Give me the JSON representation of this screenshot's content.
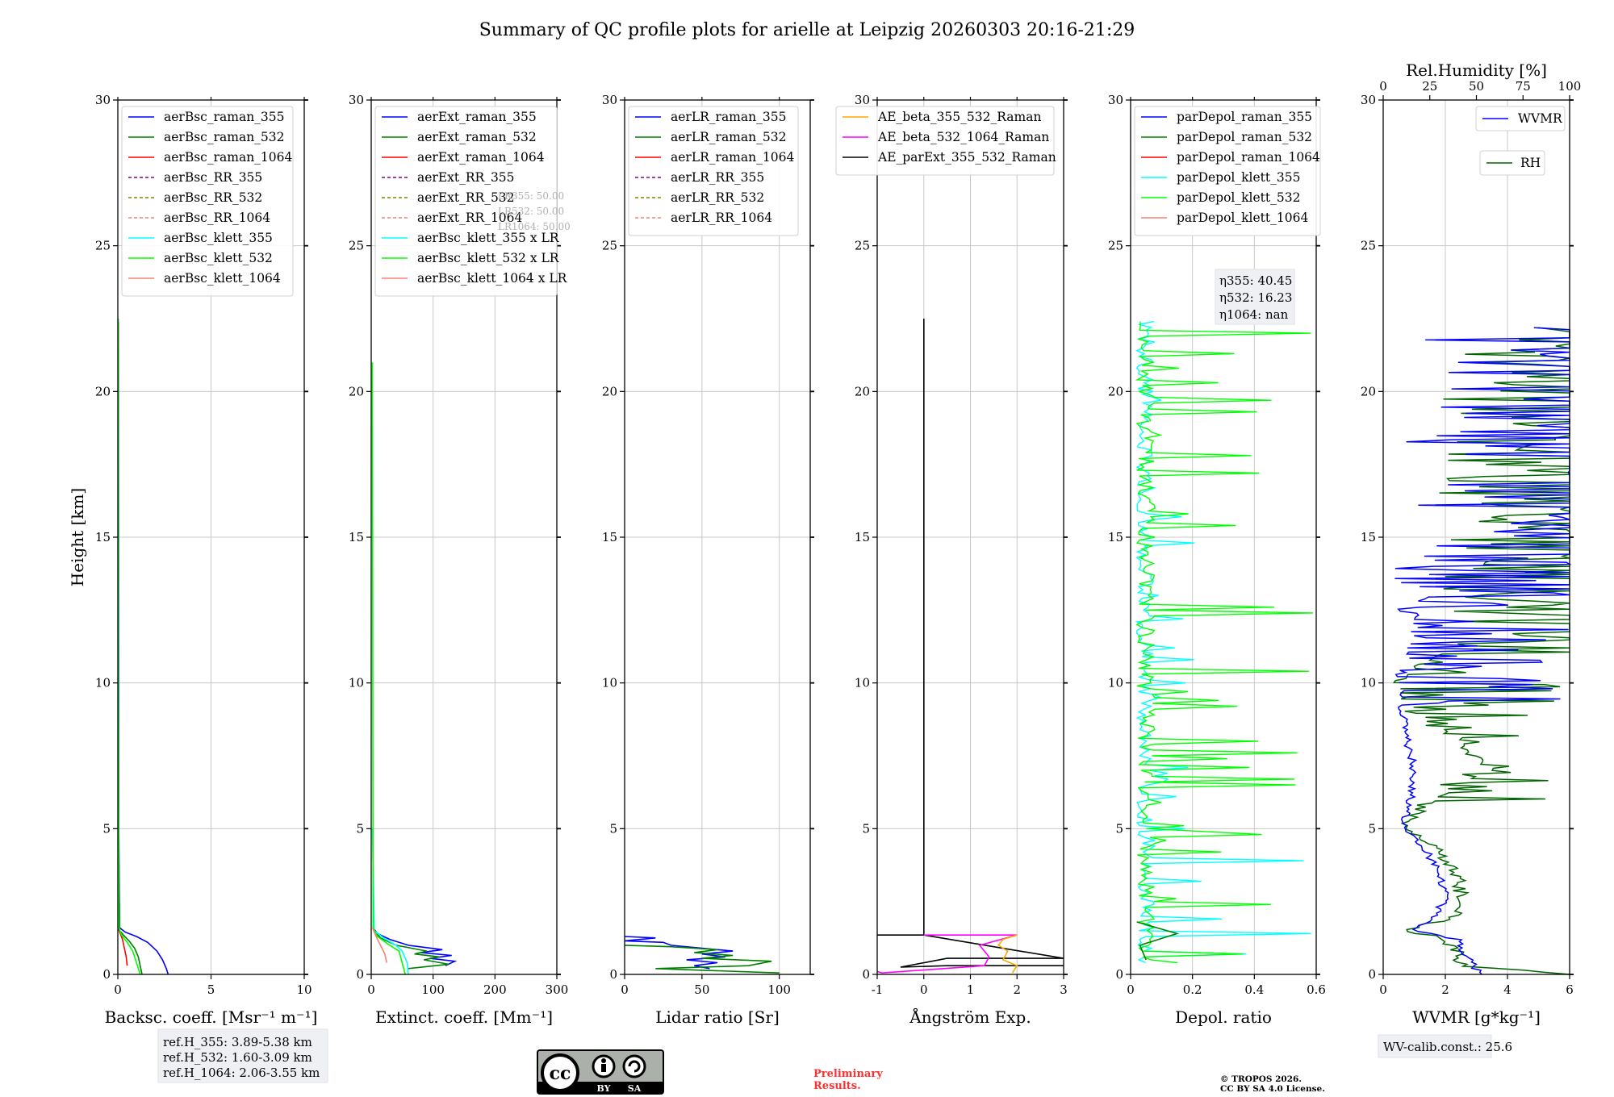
{
  "title": "Summary of QC profile plots for arielle at Leipzig 20260303 20:16-21:29",
  "colors": {
    "blue": "#0000ff",
    "green": "#008000",
    "red": "#ff0000",
    "purple": "#800080",
    "olive": "#808000",
    "salmon": "#fa8072",
    "cyan": "#00ffff",
    "lime": "#00ff00",
    "orange": "#ffa500",
    "magenta": "#ff00ff",
    "black": "#000000",
    "darkgreen": "#006400"
  },
  "chart_data": [
    {
      "id": "bsc",
      "type": "line",
      "xlabel": "Backsc. coeff. [Msr⁻¹ m⁻¹]",
      "ylabel": "Height [km]",
      "xlim": [
        0,
        10
      ],
      "ylim": [
        0,
        30
      ],
      "xticks": [
        0,
        5,
        10
      ],
      "yticks": [
        0,
        5,
        10,
        15,
        20,
        25,
        30
      ],
      "legend": [
        {
          "label": "aerBsc_raman_355",
          "color": "#0000ff",
          "dash": false
        },
        {
          "label": "aerBsc_raman_532",
          "color": "#008000",
          "dash": false
        },
        {
          "label": "aerBsc_raman_1064",
          "color": "#ff0000",
          "dash": false
        },
        {
          "label": "aerBsc_RR_355",
          "color": "#800080",
          "dash": true
        },
        {
          "label": "aerBsc_RR_532",
          "color": "#808000",
          "dash": true
        },
        {
          "label": "aerBsc_RR_1064",
          "color": "#fa8072",
          "dash": true
        },
        {
          "label": "aerBsc_klett_355",
          "color": "#00ffff",
          "dash": false
        },
        {
          "label": "aerBsc_klett_532",
          "color": "#00ff00",
          "dash": false
        },
        {
          "label": "aerBsc_klett_1064",
          "color": "#fa8072",
          "dash": false
        }
      ],
      "series": [
        {
          "name": "aerBsc_raman_355",
          "color": "#0000ff",
          "x": [
            2.7,
            2.6,
            2.4,
            2.1,
            1.6,
            1.0,
            0.4,
            0.1,
            0.05,
            0.03
          ],
          "y": [
            0,
            0.2,
            0.5,
            0.8,
            1.1,
            1.3,
            1.45,
            1.6,
            5,
            22.4
          ]
        },
        {
          "name": "aerBsc_raman_532",
          "color": "#008000",
          "x": [
            1.3,
            1.2,
            1.1,
            0.9,
            0.6,
            0.3,
            0.1,
            0.03,
            0.02
          ],
          "y": [
            0,
            0.3,
            0.6,
            0.9,
            1.15,
            1.35,
            1.5,
            5,
            22.4
          ]
        },
        {
          "name": "aerBsc_raman_1064",
          "color": "#ff0000",
          "x": [
            0.5,
            0.45,
            0.35,
            0.25,
            0.1,
            0.02
          ],
          "y": [
            0.3,
            0.6,
            0.9,
            1.2,
            1.45,
            1.6
          ]
        },
        {
          "name": "aerBsc_klett_532",
          "color": "#00ff00",
          "x": [
            1.2,
            1.0,
            0.8,
            0.5,
            0.2,
            0.05,
            0.03,
            0.02
          ],
          "y": [
            0,
            0.4,
            0.8,
            1.1,
            1.35,
            1.6,
            10,
            22.5
          ]
        }
      ]
    },
    {
      "id": "ext",
      "type": "line",
      "xlabel": "Extinct. coeff. [Mm⁻¹]",
      "xlim": [
        0,
        300
      ],
      "ylim": [
        0,
        30
      ],
      "xticks": [
        0,
        100,
        200,
        300
      ],
      "yticks": [
        0,
        5,
        10,
        15,
        20,
        25,
        30
      ],
      "legend": [
        {
          "label": "aerExt_raman_355",
          "color": "#0000ff",
          "dash": false
        },
        {
          "label": "aerExt_raman_532",
          "color": "#008000",
          "dash": false
        },
        {
          "label": "aerExt_raman_1064",
          "color": "#ff0000",
          "dash": false
        },
        {
          "label": "aerExt_RR_355",
          "color": "#800080",
          "dash": true
        },
        {
          "label": "aerExt_RR_532",
          "color": "#808000",
          "dash": true
        },
        {
          "label": "aerExt_RR_1064",
          "color": "#fa8072",
          "dash": true
        },
        {
          "label": "aerBsc_klett_355 x LR",
          "color": "#00ffff",
          "dash": false
        },
        {
          "label": "aerBsc_klett_532 x LR",
          "color": "#00ff00",
          "dash": false
        },
        {
          "label": "aerBsc_klett_1064 x LR",
          "color": "#fa8072",
          "dash": false
        }
      ],
      "lr_note": [
        "LR355: 50.00",
        "LR532: 50.00",
        "LR1064: 50.00"
      ],
      "series": [
        {
          "name": "aerExt_raman_355",
          "color": "#0000ff",
          "x": [
            120,
            135,
            95,
            130,
            80,
            115,
            60,
            30,
            10,
            3
          ],
          "y": [
            0.3,
            0.45,
            0.55,
            0.65,
            0.75,
            0.85,
            1.0,
            1.2,
            1.4,
            1.6
          ]
        },
        {
          "name": "aerExt_raman_532",
          "color": "#008000",
          "x": [
            60,
            125,
            85,
            110,
            70,
            90,
            40,
            15,
            5
          ],
          "y": [
            0.2,
            0.35,
            0.5,
            0.6,
            0.7,
            0.8,
            1.0,
            1.25,
            1.5
          ]
        },
        {
          "name": "aerBsc_klett_355 x LR",
          "color": "#00ffff",
          "x": [
            60,
            58,
            50,
            40,
            20,
            5,
            2
          ],
          "y": [
            0,
            0.4,
            0.8,
            1.0,
            1.25,
            1.5,
            5
          ]
        },
        {
          "name": "aerBsc_klett_532 x LR",
          "color": "#00ff00",
          "x": [
            55,
            50,
            45,
            30,
            10,
            3,
            2
          ],
          "y": [
            0,
            0.4,
            0.8,
            1.0,
            1.3,
            1.6,
            21
          ]
        },
        {
          "name": "aerBsc_klett_1064 x LR",
          "color": "#fa8072",
          "x": [
            25,
            22,
            15,
            8,
            2
          ],
          "y": [
            0.4,
            0.7,
            1.0,
            1.3,
            1.6
          ]
        }
      ]
    },
    {
      "id": "lr",
      "type": "line",
      "xlabel": "Lidar ratio [Sr]",
      "xlim": [
        0,
        120
      ],
      "ylim": [
        0,
        30
      ],
      "xticks": [
        0,
        50,
        100
      ],
      "yticks": [
        0,
        5,
        10,
        15,
        20,
        25,
        30
      ],
      "legend": [
        {
          "label": "aerLR_raman_355",
          "color": "#0000ff",
          "dash": false
        },
        {
          "label": "aerLR_raman_532",
          "color": "#008000",
          "dash": false
        },
        {
          "label": "aerLR_raman_1064",
          "color": "#ff0000",
          "dash": false
        },
        {
          "label": "aerLR_RR_355",
          "color": "#800080",
          "dash": true
        },
        {
          "label": "aerLR_RR_532",
          "color": "#808000",
          "dash": true
        },
        {
          "label": "aerLR_RR_1064",
          "color": "#fa8072",
          "dash": true
        }
      ],
      "series": [
        {
          "name": "aerLR_raman_355",
          "color": "#0000ff",
          "x": [
            55,
            45,
            60,
            40,
            65,
            50,
            70,
            30,
            25,
            0,
            20,
            0
          ],
          "y": [
            0.2,
            0.3,
            0.4,
            0.5,
            0.6,
            0.7,
            0.8,
            1.0,
            1.1,
            1.15,
            1.25,
            1.3
          ]
        },
        {
          "name": "aerLR_raman_532",
          "color": "#008000",
          "x": [
            100,
            20,
            80,
            95,
            50,
            70,
            45,
            60,
            30,
            0
          ],
          "y": [
            0.05,
            0.2,
            0.3,
            0.45,
            0.55,
            0.65,
            0.75,
            0.85,
            0.95,
            1.0
          ]
        }
      ]
    },
    {
      "id": "ae",
      "type": "line",
      "xlabel": "Ångström Exp.",
      "xlim": [
        -1,
        3
      ],
      "ylim": [
        0,
        30
      ],
      "xticks": [
        -1,
        0,
        1,
        2,
        3
      ],
      "yticks": [
        0,
        5,
        10,
        15,
        20,
        25,
        30
      ],
      "legend": [
        {
          "label": "AE_beta_355_532_Raman",
          "color": "#ffa500",
          "dash": false
        },
        {
          "label": "AE_beta_532_1064_Raman",
          "color": "#ff00ff",
          "dash": false
        },
        {
          "label": "AE_parExt_355_532_Raman",
          "color": "#000000",
          "dash": false
        }
      ],
      "series": [
        {
          "name": "AE_parExt_355_532_Raman",
          "color": "#000000",
          "x": [
            3.0,
            0.5,
            -0.5,
            0.5,
            3.0,
            0.0,
            -1.0,
            0.0,
            0.0
          ],
          "y": [
            0.3,
            0.3,
            0.25,
            0.55,
            0.55,
            1.35,
            1.35,
            1.35,
            22.5
          ]
        },
        {
          "name": "AE_beta_532_1064_Raman",
          "color": "#ff00ff",
          "x": [
            -1.0,
            -0.9,
            1.3,
            1.4,
            1.2,
            2.0,
            0.0
          ],
          "y": [
            0.1,
            0.05,
            0.3,
            0.6,
            1.0,
            1.35,
            1.35
          ]
        },
        {
          "name": "AE_beta_355_532_Raman",
          "color": "#ffa500",
          "x": [
            1.9,
            2.0,
            1.7,
            1.8,
            1.6,
            1.7,
            2.0
          ],
          "y": [
            0.05,
            0.3,
            0.5,
            0.8,
            1.0,
            1.2,
            1.35
          ]
        }
      ]
    },
    {
      "id": "depol",
      "type": "line",
      "xlabel": "Depol. ratio",
      "xlim": [
        0,
        0.6
      ],
      "ylim": [
        0,
        30
      ],
      "xticks": [
        0.0,
        0.2,
        0.4,
        0.6
      ],
      "yticks": [
        0,
        5,
        10,
        15,
        20,
        25,
        30
      ],
      "legend": [
        {
          "label": "parDepol_raman_355",
          "color": "#0000ff",
          "dash": false
        },
        {
          "label": "parDepol_raman_532",
          "color": "#008000",
          "dash": false
        },
        {
          "label": "parDepol_raman_1064",
          "color": "#ff0000",
          "dash": false
        },
        {
          "label": "parDepol_klett_355",
          "color": "#00ffff",
          "dash": false
        },
        {
          "label": "parDepol_klett_532",
          "color": "#00ff00",
          "dash": false
        },
        {
          "label": "parDepol_klett_1064",
          "color": "#fa8072",
          "dash": false
        }
      ],
      "eta_lines": [
        "η355: 40.45",
        "η532: 16.23",
        "η1064: nan"
      ],
      "noise": {
        "ymin": 0.4,
        "ymax": 22.5,
        "mean": 0.05,
        "spike_max": 0.6
      }
    },
    {
      "id": "wv",
      "type": "line",
      "xlabel": "WVMR [g*kg⁻¹]",
      "top_xlabel": "Rel.Humidity [%]",
      "xlim": [
        0,
        6
      ],
      "top_xlim": [
        0,
        100
      ],
      "ylim": [
        0,
        30
      ],
      "xticks": [
        0,
        2,
        4,
        6
      ],
      "top_xticks": [
        0,
        25,
        50,
        75,
        100
      ],
      "yticks": [
        0,
        5,
        10,
        15,
        20,
        25,
        30
      ],
      "legend_wvmr": "WVMR",
      "legend_rh": "RH",
      "wvmr_profile": {
        "y": [
          0,
          0.3,
          0.8,
          1.2,
          1.5,
          2.0,
          2.6,
          3.5,
          4.5,
          5.0,
          6.0,
          7.0,
          8.0,
          9.0,
          10.0,
          12.0,
          15.0,
          18.0,
          22.2
        ],
        "x": [
          3.2,
          2.9,
          2.6,
          2.4,
          1.0,
          1.6,
          2.0,
          1.8,
          1.2,
          0.6,
          0.9,
          1.0,
          0.8,
          0.6,
          0.5,
          1.0,
          2.0,
          3.0,
          4.0
        ]
      },
      "rh_profile": {
        "y": [
          0,
          0.3,
          0.8,
          1.2,
          1.5,
          2.0,
          2.6,
          3.5,
          4.5,
          5.0,
          6.0,
          7.0,
          8.0,
          9.0,
          10.0,
          11.0,
          12.0,
          15.0,
          18.0,
          22.2
        ],
        "x": [
          100,
          42,
          40,
          33,
          14,
          38,
          42,
          40,
          25,
          10,
          25,
          60,
          40,
          15,
          5,
          30,
          100,
          100,
          100,
          100
        ]
      }
    }
  ],
  "boxes": {
    "ref_h": [
      "ref.H_355: 3.89-5.38 km",
      "ref.H_532: 1.60-3.09 km",
      "ref.H_1064: 2.06-3.55 km"
    ],
    "wv_calib": "WV-calib.const.: 25.6",
    "preliminary": [
      "Preliminary",
      "Results."
    ],
    "copyright": [
      "© TROPOS 2026.",
      "CC BY SA 4.0 License."
    ],
    "cc_badge": {
      "main": "cc",
      "by": "BY",
      "sa": "SA"
    }
  }
}
